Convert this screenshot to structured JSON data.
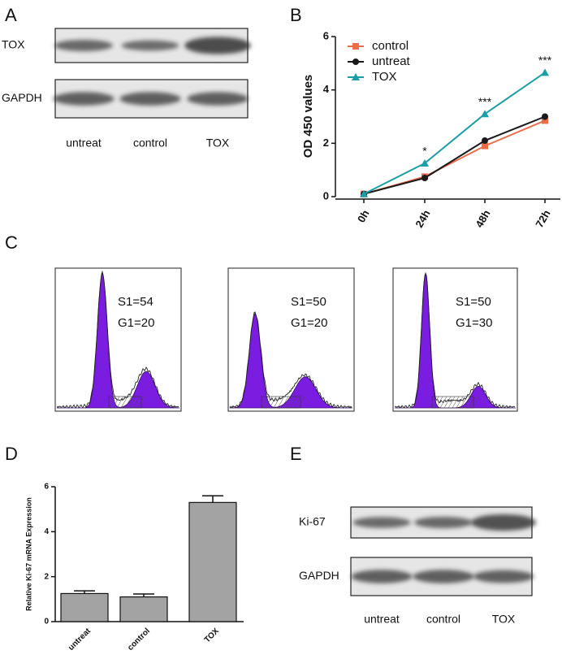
{
  "panel_labels": [
    "A",
    "B",
    "C",
    "D",
    "E"
  ],
  "blot_a": {
    "rows": [
      "TOX",
      "GAPDH"
    ],
    "lanes": [
      "untreat",
      "control",
      "TOX"
    ]
  },
  "flow": [
    {
      "s1": "S1=54",
      "g1": "G1=20"
    },
    {
      "s1": "S1=50",
      "g1": "G1=20"
    },
    {
      "s1": "S1=50",
      "g1": "G1=30"
    }
  ],
  "blot_e": {
    "rows": [
      "Ki-67",
      "GAPDH"
    ],
    "lanes": [
      "untreat",
      "control",
      "TOX"
    ]
  },
  "chart_data": [
    {
      "type": "line",
      "y_label": "OD 450 values",
      "categories": [
        "0h",
        "24h",
        "48h",
        "72h"
      ],
      "ylim": [
        0,
        6
      ],
      "yticks": [
        0,
        2,
        4,
        6
      ],
      "series": [
        {
          "name": "control",
          "color": "#ec6b48",
          "marker": "square",
          "values": [
            0.1,
            0.75,
            1.9,
            2.85
          ]
        },
        {
          "name": "untreat",
          "color": "#1a1a1a",
          "marker": "circle",
          "values": [
            0.1,
            0.7,
            2.1,
            3.0
          ]
        },
        {
          "name": "TOX",
          "color": "#1b9ea8",
          "marker": "triangle",
          "values": [
            0.1,
            1.25,
            3.1,
            4.65
          ]
        }
      ],
      "annotations": [
        null,
        "*",
        "***",
        "***"
      ]
    },
    {
      "type": "bar",
      "y_label": "Relative Ki-67 mRNA Expression",
      "categories": [
        "untreat",
        "control",
        "TOX"
      ],
      "values": [
        1.25,
        1.1,
        5.3
      ],
      "errors": [
        0.12,
        0.13,
        0.3
      ],
      "color": "#a3a3a3",
      "ylim": [
        0,
        6
      ],
      "yticks": [
        0,
        2,
        4,
        6
      ]
    }
  ]
}
